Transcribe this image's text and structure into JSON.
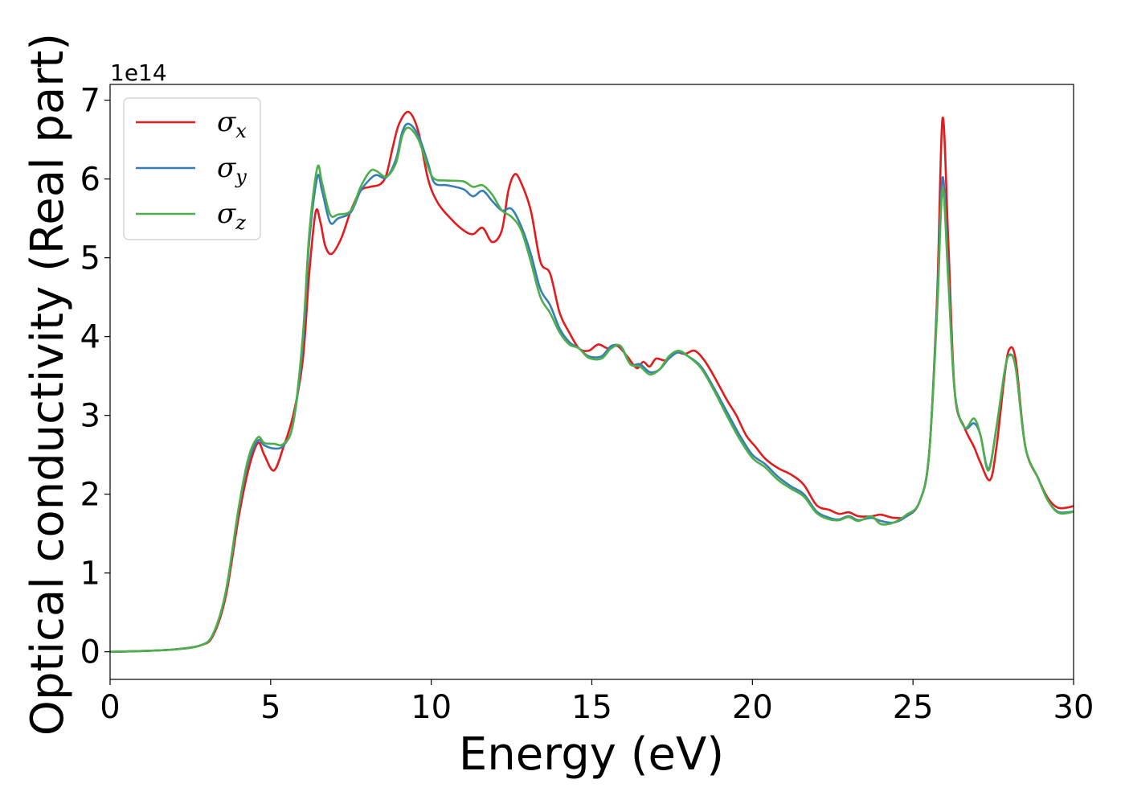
{
  "chart_data": {
    "type": "line",
    "xlabel": "Energy (eV)",
    "ylabel": "Optical conductivity (Real part)",
    "offset_text": "1e14",
    "xlim": [
      0,
      30
    ],
    "ylim": [
      -0.35,
      7.2
    ],
    "xticks": [
      0,
      5,
      10,
      15,
      20,
      25,
      30
    ],
    "xtick_labels": [
      "0",
      "5",
      "10",
      "15",
      "20",
      "25",
      "30"
    ],
    "yticks": [
      0,
      1,
      2,
      3,
      4,
      5,
      6,
      7
    ],
    "ytick_labels": [
      "0",
      "1",
      "2",
      "3",
      "4",
      "5",
      "6",
      "7"
    ],
    "legend_position": "top-left",
    "grid": false,
    "series": [
      {
        "name": "σx",
        "base": "σ",
        "sub": "x",
        "color": "#e41a1c",
        "points": [
          [
            0,
            0
          ],
          [
            1,
            0.01
          ],
          [
            2,
            0.03
          ],
          [
            2.8,
            0.08
          ],
          [
            3.2,
            0.2
          ],
          [
            3.6,
            0.7
          ],
          [
            4,
            1.7
          ],
          [
            4.3,
            2.3
          ],
          [
            4.6,
            2.65
          ],
          [
            4.8,
            2.5
          ],
          [
            5.1,
            2.3
          ],
          [
            5.4,
            2.6
          ],
          [
            5.7,
            3.0
          ],
          [
            6.0,
            3.7
          ],
          [
            6.2,
            4.8
          ],
          [
            6.4,
            5.58
          ],
          [
            6.55,
            5.45
          ],
          [
            6.7,
            5.15
          ],
          [
            6.9,
            5.05
          ],
          [
            7.2,
            5.25
          ],
          [
            7.5,
            5.6
          ],
          [
            7.8,
            5.85
          ],
          [
            8.1,
            5.9
          ],
          [
            8.4,
            5.93
          ],
          [
            8.6,
            6.05
          ],
          [
            8.8,
            6.4
          ],
          [
            9.0,
            6.7
          ],
          [
            9.3,
            6.85
          ],
          [
            9.6,
            6.6
          ],
          [
            9.9,
            6.0
          ],
          [
            10.2,
            5.7
          ],
          [
            10.6,
            5.5
          ],
          [
            11.0,
            5.35
          ],
          [
            11.3,
            5.3
          ],
          [
            11.6,
            5.38
          ],
          [
            11.9,
            5.2
          ],
          [
            12.2,
            5.35
          ],
          [
            12.4,
            5.85
          ],
          [
            12.6,
            6.06
          ],
          [
            12.8,
            5.95
          ],
          [
            13.1,
            5.6
          ],
          [
            13.4,
            4.95
          ],
          [
            13.7,
            4.8
          ],
          [
            14.0,
            4.3
          ],
          [
            14.3,
            4.05
          ],
          [
            14.6,
            3.85
          ],
          [
            14.9,
            3.82
          ],
          [
            15.2,
            3.9
          ],
          [
            15.5,
            3.85
          ],
          [
            15.8,
            3.88
          ],
          [
            16.1,
            3.75
          ],
          [
            16.4,
            3.6
          ],
          [
            16.6,
            3.68
          ],
          [
            16.8,
            3.62
          ],
          [
            17.0,
            3.72
          ],
          [
            17.3,
            3.7
          ],
          [
            17.6,
            3.8
          ],
          [
            17.9,
            3.78
          ],
          [
            18.2,
            3.82
          ],
          [
            18.5,
            3.7
          ],
          [
            18.8,
            3.5
          ],
          [
            19.2,
            3.2
          ],
          [
            19.5,
            3.0
          ],
          [
            19.8,
            2.75
          ],
          [
            20.1,
            2.6
          ],
          [
            20.4,
            2.45
          ],
          [
            20.8,
            2.33
          ],
          [
            21.2,
            2.25
          ],
          [
            21.6,
            2.12
          ],
          [
            22.0,
            1.86
          ],
          [
            22.4,
            1.8
          ],
          [
            22.7,
            1.75
          ],
          [
            23.0,
            1.77
          ],
          [
            23.3,
            1.72
          ],
          [
            23.7,
            1.72
          ],
          [
            24.0,
            1.74
          ],
          [
            24.4,
            1.7
          ],
          [
            24.8,
            1.72
          ],
          [
            25.2,
            1.9
          ],
          [
            25.5,
            2.5
          ],
          [
            25.75,
            4.5
          ],
          [
            25.92,
            6.77
          ],
          [
            26.1,
            5.2
          ],
          [
            26.3,
            3.3
          ],
          [
            26.6,
            2.85
          ],
          [
            26.9,
            2.6
          ],
          [
            27.1,
            2.4
          ],
          [
            27.4,
            2.18
          ],
          [
            27.6,
            2.6
          ],
          [
            27.85,
            3.5
          ],
          [
            28.0,
            3.84
          ],
          [
            28.2,
            3.7
          ],
          [
            28.5,
            2.6
          ],
          [
            28.9,
            2.2
          ],
          [
            29.2,
            1.95
          ],
          [
            29.5,
            1.83
          ],
          [
            29.8,
            1.83
          ],
          [
            30,
            1.85
          ]
        ]
      },
      {
        "name": "σy",
        "base": "σ",
        "sub": "y",
        "color": "#377eb8",
        "points": [
          [
            0,
            0
          ],
          [
            1,
            0.01
          ],
          [
            2,
            0.03
          ],
          [
            2.8,
            0.08
          ],
          [
            3.2,
            0.22
          ],
          [
            3.6,
            0.75
          ],
          [
            4,
            1.8
          ],
          [
            4.3,
            2.4
          ],
          [
            4.6,
            2.68
          ],
          [
            4.8,
            2.62
          ],
          [
            5.1,
            2.58
          ],
          [
            5.4,
            2.62
          ],
          [
            5.7,
            2.9
          ],
          [
            6.0,
            3.9
          ],
          [
            6.2,
            5.2
          ],
          [
            6.45,
            6.02
          ],
          [
            6.6,
            5.85
          ],
          [
            6.85,
            5.45
          ],
          [
            7.1,
            5.5
          ],
          [
            7.5,
            5.58
          ],
          [
            7.8,
            5.85
          ],
          [
            8.1,
            6.0
          ],
          [
            8.3,
            6.05
          ],
          [
            8.6,
            6.02
          ],
          [
            8.9,
            6.25
          ],
          [
            9.1,
            6.6
          ],
          [
            9.3,
            6.7
          ],
          [
            9.6,
            6.55
          ],
          [
            9.9,
            6.2
          ],
          [
            10.1,
            5.95
          ],
          [
            10.5,
            5.92
          ],
          [
            11.0,
            5.87
          ],
          [
            11.3,
            5.78
          ],
          [
            11.6,
            5.85
          ],
          [
            11.9,
            5.72
          ],
          [
            12.2,
            5.6
          ],
          [
            12.5,
            5.62
          ],
          [
            12.8,
            5.4
          ],
          [
            13.1,
            5.05
          ],
          [
            13.4,
            4.6
          ],
          [
            13.7,
            4.4
          ],
          [
            14.0,
            4.1
          ],
          [
            14.3,
            3.93
          ],
          [
            14.6,
            3.85
          ],
          [
            14.9,
            3.75
          ],
          [
            15.3,
            3.75
          ],
          [
            15.6,
            3.88
          ],
          [
            15.9,
            3.87
          ],
          [
            16.2,
            3.65
          ],
          [
            16.5,
            3.65
          ],
          [
            16.8,
            3.55
          ],
          [
            17.1,
            3.58
          ],
          [
            17.4,
            3.72
          ],
          [
            17.7,
            3.8
          ],
          [
            18.0,
            3.75
          ],
          [
            18.4,
            3.62
          ],
          [
            18.8,
            3.35
          ],
          [
            19.2,
            3.05
          ],
          [
            19.6,
            2.75
          ],
          [
            20.0,
            2.5
          ],
          [
            20.4,
            2.38
          ],
          [
            20.8,
            2.22
          ],
          [
            21.2,
            2.1
          ],
          [
            21.6,
            2.0
          ],
          [
            22.0,
            1.78
          ],
          [
            22.4,
            1.7
          ],
          [
            22.7,
            1.68
          ],
          [
            23.0,
            1.72
          ],
          [
            23.3,
            1.67
          ],
          [
            23.7,
            1.7
          ],
          [
            24.0,
            1.66
          ],
          [
            24.4,
            1.64
          ],
          [
            24.8,
            1.72
          ],
          [
            25.2,
            1.9
          ],
          [
            25.5,
            2.5
          ],
          [
            25.75,
            4.4
          ],
          [
            25.92,
            6.02
          ],
          [
            26.1,
            4.8
          ],
          [
            26.3,
            3.3
          ],
          [
            26.6,
            2.85
          ],
          [
            26.9,
            2.9
          ],
          [
            27.1,
            2.75
          ],
          [
            27.35,
            2.32
          ],
          [
            27.6,
            2.85
          ],
          [
            27.85,
            3.55
          ],
          [
            28.0,
            3.77
          ],
          [
            28.2,
            3.6
          ],
          [
            28.5,
            2.6
          ],
          [
            28.9,
            2.2
          ],
          [
            29.2,
            1.92
          ],
          [
            29.5,
            1.78
          ],
          [
            29.8,
            1.77
          ],
          [
            30,
            1.78
          ]
        ]
      },
      {
        "name": "σz",
        "base": "σ",
        "sub": "z",
        "color": "#4daf4a",
        "points": [
          [
            0,
            0
          ],
          [
            1,
            0.01
          ],
          [
            2,
            0.03
          ],
          [
            2.8,
            0.08
          ],
          [
            3.2,
            0.22
          ],
          [
            3.6,
            0.76
          ],
          [
            4,
            1.82
          ],
          [
            4.3,
            2.45
          ],
          [
            4.6,
            2.72
          ],
          [
            4.8,
            2.65
          ],
          [
            5.1,
            2.64
          ],
          [
            5.4,
            2.64
          ],
          [
            5.7,
            2.9
          ],
          [
            6.0,
            4.0
          ],
          [
            6.2,
            5.3
          ],
          [
            6.45,
            6.14
          ],
          [
            6.6,
            5.95
          ],
          [
            6.85,
            5.55
          ],
          [
            7.1,
            5.55
          ],
          [
            7.5,
            5.6
          ],
          [
            7.8,
            5.9
          ],
          [
            8.1,
            6.1
          ],
          [
            8.3,
            6.1
          ],
          [
            8.6,
            6.03
          ],
          [
            8.9,
            6.2
          ],
          [
            9.1,
            6.55
          ],
          [
            9.3,
            6.65
          ],
          [
            9.6,
            6.5
          ],
          [
            9.9,
            6.15
          ],
          [
            10.1,
            6.0
          ],
          [
            10.5,
            5.98
          ],
          [
            11.0,
            5.97
          ],
          [
            11.3,
            5.9
          ],
          [
            11.6,
            5.92
          ],
          [
            11.9,
            5.8
          ],
          [
            12.2,
            5.6
          ],
          [
            12.5,
            5.52
          ],
          [
            12.8,
            5.35
          ],
          [
            13.1,
            4.95
          ],
          [
            13.4,
            4.5
          ],
          [
            13.7,
            4.3
          ],
          [
            14.0,
            4.05
          ],
          [
            14.3,
            3.9
          ],
          [
            14.6,
            3.85
          ],
          [
            14.9,
            3.73
          ],
          [
            15.3,
            3.72
          ],
          [
            15.6,
            3.85
          ],
          [
            15.9,
            3.88
          ],
          [
            16.2,
            3.65
          ],
          [
            16.5,
            3.62
          ],
          [
            16.8,
            3.52
          ],
          [
            17.1,
            3.58
          ],
          [
            17.4,
            3.75
          ],
          [
            17.7,
            3.82
          ],
          [
            18.0,
            3.75
          ],
          [
            18.4,
            3.6
          ],
          [
            18.8,
            3.32
          ],
          [
            19.2,
            3.0
          ],
          [
            19.6,
            2.7
          ],
          [
            20.0,
            2.46
          ],
          [
            20.4,
            2.34
          ],
          [
            20.8,
            2.18
          ],
          [
            21.2,
            2.07
          ],
          [
            21.6,
            1.97
          ],
          [
            22.0,
            1.76
          ],
          [
            22.4,
            1.68
          ],
          [
            22.7,
            1.67
          ],
          [
            23.0,
            1.71
          ],
          [
            23.3,
            1.66
          ],
          [
            23.7,
            1.72
          ],
          [
            24.0,
            1.62
          ],
          [
            24.4,
            1.64
          ],
          [
            24.8,
            1.74
          ],
          [
            25.2,
            1.9
          ],
          [
            25.5,
            2.5
          ],
          [
            25.75,
            4.3
          ],
          [
            25.92,
            5.87
          ],
          [
            26.1,
            4.7
          ],
          [
            26.3,
            3.3
          ],
          [
            26.6,
            2.85
          ],
          [
            26.9,
            2.96
          ],
          [
            27.1,
            2.75
          ],
          [
            27.35,
            2.3
          ],
          [
            27.6,
            2.85
          ],
          [
            27.85,
            3.55
          ],
          [
            28.0,
            3.76
          ],
          [
            28.2,
            3.6
          ],
          [
            28.5,
            2.6
          ],
          [
            28.9,
            2.2
          ],
          [
            29.2,
            1.92
          ],
          [
            29.5,
            1.77
          ],
          [
            29.8,
            1.76
          ],
          [
            30,
            1.78
          ]
        ]
      }
    ]
  }
}
